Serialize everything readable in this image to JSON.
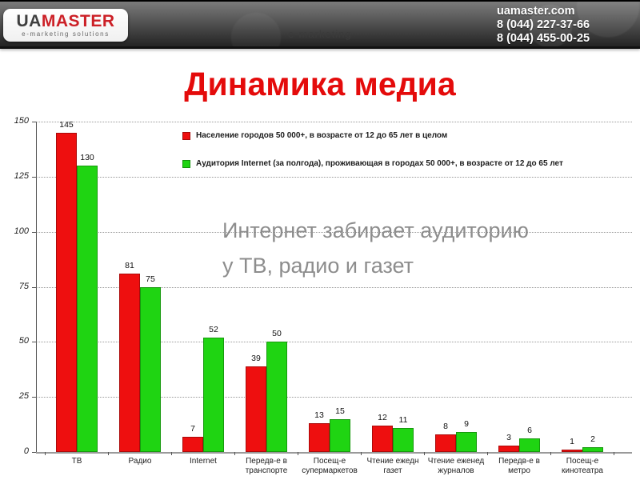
{
  "header": {
    "logo": {
      "part1": "UA",
      "part2": "MASTER",
      "tagline": "e-marketing solutions"
    },
    "watermark": "e-marketing",
    "contact": {
      "site": "uamaster.com",
      "phone1": "8 (044) 227-37-66",
      "phone2": "8 (044) 455-00-25"
    }
  },
  "title": "Динамика медиа",
  "annotation": {
    "line1": "Интернет забирает аудиторию",
    "line2": "у ТВ, радио и газет"
  },
  "colors": {
    "title": "#e40b0b",
    "annotation": "#8d8d8d",
    "series1": "#ee0f0f",
    "series2": "#1fd412"
  },
  "chart_data": {
    "type": "bar",
    "title": "",
    "categories": [
      "ТВ",
      "Радио",
      "Internet",
      "Передв-е в\nтранспорте",
      "Посещ-е\nсупермаркетов",
      "Чтение ежедн\nгазет",
      "Чтение еженед\nжурналов",
      "Передв-е в\nметро",
      "Посещ-е\nкинотеатра"
    ],
    "series": [
      {
        "name": "Население городов 50 000+, в возрасте от 12 до 65 лет в целом",
        "color": "#ee0f0f",
        "values": [
          145,
          81,
          7,
          39,
          13,
          12,
          8,
          3,
          1
        ]
      },
      {
        "name": "Аудитория Internet (за полгода), проживающая в городах 50 000+, в возрасте от 12 до 65 лет",
        "color": "#1fd412",
        "values": [
          130,
          75,
          52,
          50,
          15,
          11,
          9,
          6,
          2
        ]
      }
    ],
    "xlabel": "",
    "ylabel": "",
    "ylim": [
      0,
      150
    ],
    "y_ticks": [
      0,
      25,
      50,
      75,
      100,
      125,
      150
    ],
    "grid": "horizontal-dotted",
    "legend_position": "top-inside"
  }
}
